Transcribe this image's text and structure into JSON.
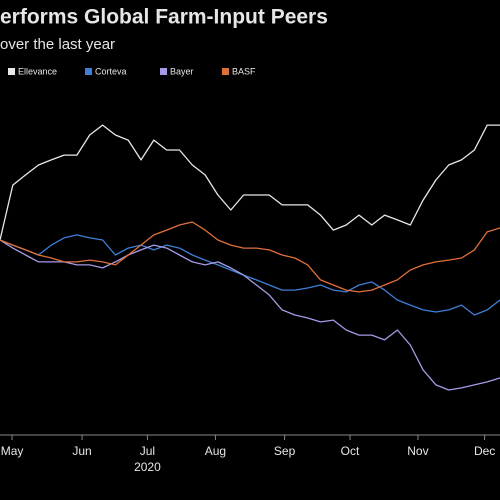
{
  "chart_data": {
    "type": "line",
    "title": "erforms Global Farm-Input Peers",
    "subtitle": "over the last year",
    "x_sublabel": "2020",
    "xlim": [
      0,
      39
    ],
    "xticks": [
      {
        "value": 0.94,
        "label": "May"
      },
      {
        "value": 6.4,
        "label": "Jun"
      },
      {
        "value": 11.5,
        "label": "Jul"
      },
      {
        "value": 16.8,
        "label": "Aug"
      },
      {
        "value": 22.2,
        "label": "Sep"
      },
      {
        "value": 27.3,
        "label": "Oct"
      },
      {
        "value": 32.6,
        "label": "Nov"
      },
      {
        "value": 37.8,
        "label": "Dec"
      }
    ],
    "ylim": [
      40,
      145
    ],
    "series": [
      {
        "name": "Ellevance",
        "color": "#e8e8e8",
        "values": [
          100,
          118.3,
          121.7,
          125,
          126.7,
          128.3,
          128.3,
          135,
          138.3,
          135,
          133.3,
          126.7,
          133.3,
          130,
          130,
          125,
          121.7,
          115,
          110,
          115,
          115,
          115,
          111.7,
          111.7,
          111.7,
          108.3,
          103.3,
          105,
          108.3,
          105,
          108.3,
          106.7,
          105,
          113.3,
          120,
          125,
          126.7,
          130,
          138.3,
          138.3
        ]
      },
      {
        "name": "Corteva",
        "color": "#3f7fd6",
        "values": [
          100,
          98.3,
          96.7,
          95,
          98.3,
          100.7,
          101.7,
          100.7,
          100,
          95,
          97.3,
          98.3,
          96.7,
          98.3,
          97.3,
          95,
          93.3,
          91.7,
          90,
          88.3,
          86.7,
          85,
          83.3,
          83.3,
          84,
          85,
          83.3,
          82.7,
          85,
          86,
          83.3,
          80,
          78.3,
          76.7,
          76,
          76.7,
          78.3,
          75,
          76.7,
          80
        ]
      },
      {
        "name": "Bayer",
        "color": "#a59be6",
        "values": [
          100,
          97.3,
          95,
          92.7,
          92.7,
          92.7,
          91.7,
          91.7,
          90.7,
          92.7,
          95,
          96.7,
          98.3,
          97.3,
          95,
          92.7,
          91.7,
          92.7,
          90.7,
          88.3,
          85,
          81.7,
          76.7,
          75,
          74,
          72.7,
          73.3,
          70,
          68.3,
          68.3,
          66.7,
          70,
          65,
          56.7,
          51.7,
          50,
          50.7,
          51.7,
          52.7,
          54
        ]
      },
      {
        "name": "BASF",
        "color": "#e0703a",
        "values": [
          100,
          98.3,
          96.7,
          95,
          94,
          92.7,
          92.7,
          93.3,
          92.7,
          91.7,
          95,
          98.3,
          101.7,
          103.3,
          105,
          106,
          103.3,
          100,
          98.3,
          97.3,
          97.3,
          96.7,
          95,
          94,
          91.7,
          86.7,
          85,
          83.3,
          82.7,
          83.3,
          85,
          86.7,
          90,
          91.7,
          92.7,
          93.3,
          94,
          96.7,
          102.7,
          104
        ]
      }
    ]
  }
}
